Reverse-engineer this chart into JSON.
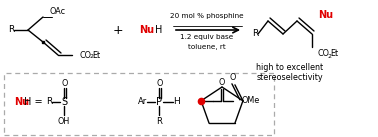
{
  "bg_color": "#ffffff",
  "black": "#000000",
  "red": "#e00000",
  "gray": "#aaaaaa",
  "figsize": [
    3.78,
    1.37
  ],
  "dpi": 100,
  "cond1": "20 mol % phosphine",
  "cond2": "1.2 equiv base",
  "cond3": "toluene, rt",
  "result1": "high to excellent",
  "result2": "stereoselectivity"
}
